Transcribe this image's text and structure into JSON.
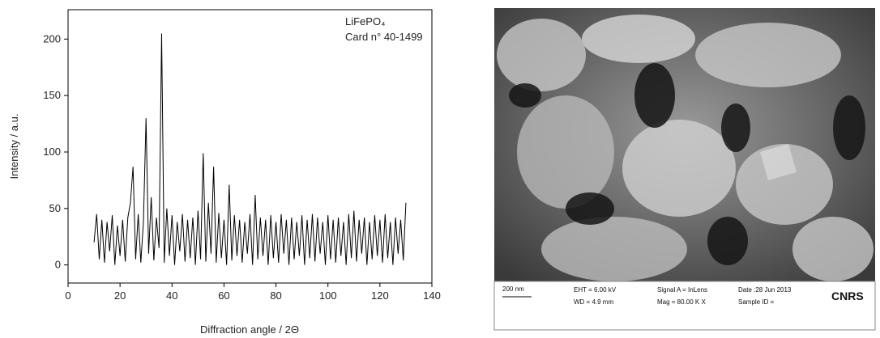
{
  "chart_data": {
    "type": "line",
    "x_label": "Diffraction angle / 2Θ",
    "y_label": "Intensity / a.u.",
    "annotations": [
      "LiFePO₄",
      "Card n° 40-1499"
    ],
    "color": "#000000",
    "xlim": [
      0,
      140
    ],
    "xticks": [
      0,
      20,
      40,
      60,
      80,
      100,
      120,
      140
    ],
    "ylim": [
      -16,
      226
    ],
    "yticks": [
      0,
      50,
      100,
      150,
      200
    ],
    "x": [
      10,
      11,
      12,
      13,
      14,
      15,
      16,
      17,
      18,
      19,
      20,
      21,
      22,
      23,
      24,
      25,
      26,
      27,
      28,
      29,
      30,
      31,
      32,
      33,
      34,
      35,
      36,
      37,
      38,
      39,
      40,
      41,
      42,
      43,
      44,
      45,
      46,
      47,
      48,
      49,
      50,
      51,
      52,
      53,
      54,
      55,
      56,
      57,
      58,
      59,
      60,
      61,
      62,
      63,
      64,
      65,
      66,
      67,
      68,
      69,
      70,
      71,
      72,
      73,
      74,
      75,
      76,
      77,
      78,
      79,
      80,
      81,
      82,
      83,
      84,
      85,
      86,
      87,
      88,
      89,
      90,
      91,
      92,
      93,
      94,
      95,
      96,
      97,
      98,
      99,
      100,
      101,
      102,
      103,
      104,
      105,
      106,
      107,
      108,
      109,
      110,
      111,
      112,
      113,
      114,
      115,
      116,
      117,
      118,
      119,
      120,
      121,
      122,
      123,
      124,
      125,
      126,
      127,
      128,
      129,
      130
    ],
    "values": [
      20,
      45,
      5,
      40,
      2,
      38,
      12,
      44,
      0,
      35,
      8,
      40,
      3,
      42,
      55,
      87,
      5,
      45,
      2,
      38,
      130,
      10,
      60,
      4,
      42,
      15,
      205,
      2,
      50,
      8,
      44,
      0,
      38,
      12,
      45,
      3,
      40,
      6,
      42,
      0,
      48,
      5,
      99,
      3,
      55,
      10,
      87,
      2,
      46,
      6,
      40,
      0,
      71,
      4,
      44,
      8,
      40,
      2,
      38,
      10,
      45,
      0,
      62,
      5,
      42,
      8,
      40,
      0,
      44,
      6,
      38,
      2,
      45,
      10,
      40,
      0,
      42,
      5,
      38,
      8,
      44,
      0,
      40,
      6,
      45,
      3,
      42,
      10,
      38,
      0,
      44,
      5,
      40,
      2,
      42,
      8,
      38,
      0,
      45,
      6,
      48,
      3,
      40,
      10,
      42,
      0,
      38,
      5,
      44,
      8,
      40,
      2,
      45,
      6,
      38,
      0,
      42,
      10,
      40,
      4,
      55
    ]
  },
  "sem_image": {
    "scale_bar": "200 nm",
    "labels": [
      "EHT = 6.00 kV",
      "WD = 4.9 mm",
      "Signal A = InLens",
      "Mag = 80.00 K X",
      "Date :28 Jun 2013",
      "Sample ID ="
    ],
    "logo": "CNRS"
  }
}
